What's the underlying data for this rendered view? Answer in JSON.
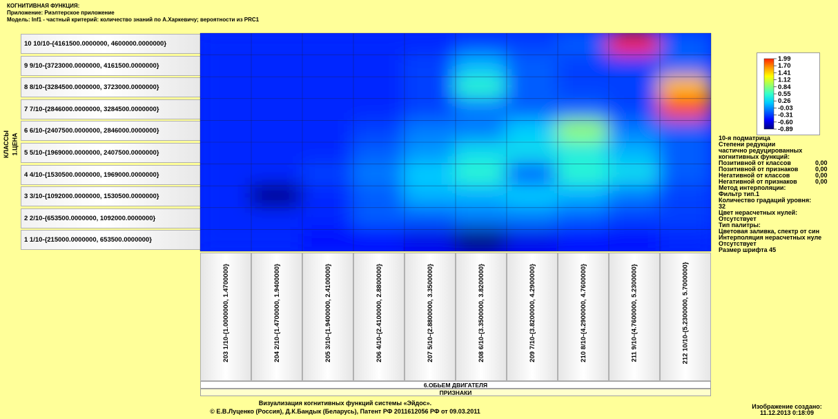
{
  "header": {
    "line1": "КОГНИТИВНАЯ ФУНКЦИЯ:",
    "line2": "Приложение: Риэлтерское приложение",
    "line3": "Модель: Inf1 - частный критерий: количество знаний по А.Харкевичу; вероятности из PRC1"
  },
  "y_axis": {
    "outer": "КЛАССЫ",
    "inner": "1.ЦЕНА"
  },
  "x_axis": {
    "title": "6.ОБЬЕМ ДВИГАТЕЛЯ",
    "group": "ПРИЗНАКИ"
  },
  "chart_data": {
    "type": "heatmap",
    "rows": [
      "10 10/10-{4161500.0000000, 4600000.0000000}",
      "9 9/10-{3723000.0000000, 4161500.0000000}",
      "8 8/10-{3284500.0000000, 3723000.0000000}",
      "7 7/10-{2846000.0000000, 3284500.0000000}",
      "6 6/10-{2407500.0000000, 2846000.0000000}",
      "5 5/10-{1969000.0000000, 2407500.0000000}",
      "4 4/10-{1530500.0000000, 1969000.0000000}",
      "3 3/10-{1092000.0000000, 1530500.0000000}",
      "2 2/10-{653500.0000000, 1092000.0000000}",
      "1 1/10-{215000.0000000, 653500.0000000}"
    ],
    "columns": [
      "203 1/10-{1.0000000, 1.4700000}",
      "204 2/10-{1.4700000, 1.9400000}",
      "205 3/10-{1.9400000, 2.4100000}",
      "206 4/10-{2.4100000, 2.8800000}",
      "207 5/10-{2.8800000, 3.3500000}",
      "208 6/10-{3.3500000, 3.8200000}",
      "209 7/10-{3.8200000, 4.2900000}",
      "210 8/10-{4.2900000, 4.7600000}",
      "211 9/10-{4.7600000, 5.2300000}",
      "212 10/10-{5.2300000, 5.7000000}"
    ],
    "values": [
      [
        -0.4,
        -0.4,
        -0.4,
        -0.4,
        -0.4,
        -0.3,
        -0.3,
        -0.2,
        1.99,
        -0.2
      ],
      [
        -0.4,
        -0.4,
        -0.4,
        -0.4,
        -0.3,
        0.1,
        -0.2,
        -0.3,
        -0.3,
        -0.2
      ],
      [
        -0.4,
        -0.4,
        -0.4,
        -0.4,
        -0.3,
        0.5,
        -0.2,
        -0.3,
        -0.3,
        1.5
      ],
      [
        -0.4,
        -0.4,
        -0.4,
        -0.4,
        -0.3,
        -0.1,
        -0.2,
        -0.2,
        -0.3,
        1.9
      ],
      [
        -0.4,
        -0.4,
        -0.4,
        -0.3,
        -0.1,
        -0.1,
        0.2,
        0.9,
        -0.1,
        -0.2
      ],
      [
        -0.4,
        -0.4,
        -0.4,
        -0.2,
        0.0,
        0.3,
        0.3,
        0.4,
        0.1,
        -0.2
      ],
      [
        -0.4,
        -0.4,
        -0.3,
        -0.1,
        0.2,
        0.5,
        -0.2,
        0.5,
        0.3,
        -0.2
      ],
      [
        -0.4,
        -0.89,
        -0.4,
        -0.2,
        0.1,
        0.1,
        0.2,
        0.1,
        -0.1,
        -0.3
      ],
      [
        -0.4,
        -0.4,
        -0.4,
        -0.2,
        -0.2,
        -0.1,
        -0.1,
        -0.2,
        -0.3,
        -0.3
      ],
      [
        -0.4,
        -0.4,
        -0.5,
        -0.5,
        -0.6,
        -0.89,
        -0.6,
        -0.5,
        -0.5,
        -0.4
      ]
    ],
    "vmin": -0.89,
    "vmax": 1.99,
    "colorbar_ticks": [
      "1.99",
      "1.70",
      "1.41",
      "1.12",
      "0.84",
      "0.55",
      "0.26",
      "-0.03",
      "-0.31",
      "-0.60",
      "-0.89"
    ],
    "colorscale": [
      "#00007f",
      "#0000ff",
      "#0066ff",
      "#00ccff",
      "#33ffcc",
      "#99ff66",
      "#ffff00",
      "#ff9900",
      "#ff2200"
    ]
  },
  "info": {
    "submatrix": "10-я подматрица",
    "reduction_title": [
      "Степени редукции",
      "частично редуцированных",
      "когнитивных функций:"
    ],
    "reductions": [
      {
        "label": "Позитивной от классов",
        "value": "0,00"
      },
      {
        "label": "Позитивной от признаков",
        "value": "0,00"
      },
      {
        "label": "Негативной от классов",
        "value": "0,00"
      },
      {
        "label": "Негативной от признаков",
        "value": "0,00"
      }
    ],
    "interp_method_label": "Метод интерполяции:",
    "interp_method_value": "Фильтр тип.1",
    "levels_label": "Количество градаций уровня:",
    "levels_value": "32",
    "zero_color_label": "Цвет нерасчетных нулей:",
    "zero_color_value": "Отсутствует",
    "palette_label": "Тип палитры:",
    "palette_value": "Цветовая заливка, спектр от син",
    "zero_interp_label": "Интерполяция нерасчетных нуле",
    "zero_interp_value": "Отсутствует",
    "font_size": "Размер шрифта 45"
  },
  "footer": {
    "line1": "Визуализация когнитивных функций системы «Эйдос».",
    "line2": "© Е.В.Луценко (Россия), Д.К.Бандык (Беларусь), Патент РФ  2011612056 РФ от 09.03.2011"
  },
  "created": {
    "label": "Изображение создано:",
    "value": "11.12.2013  0:18:09"
  }
}
